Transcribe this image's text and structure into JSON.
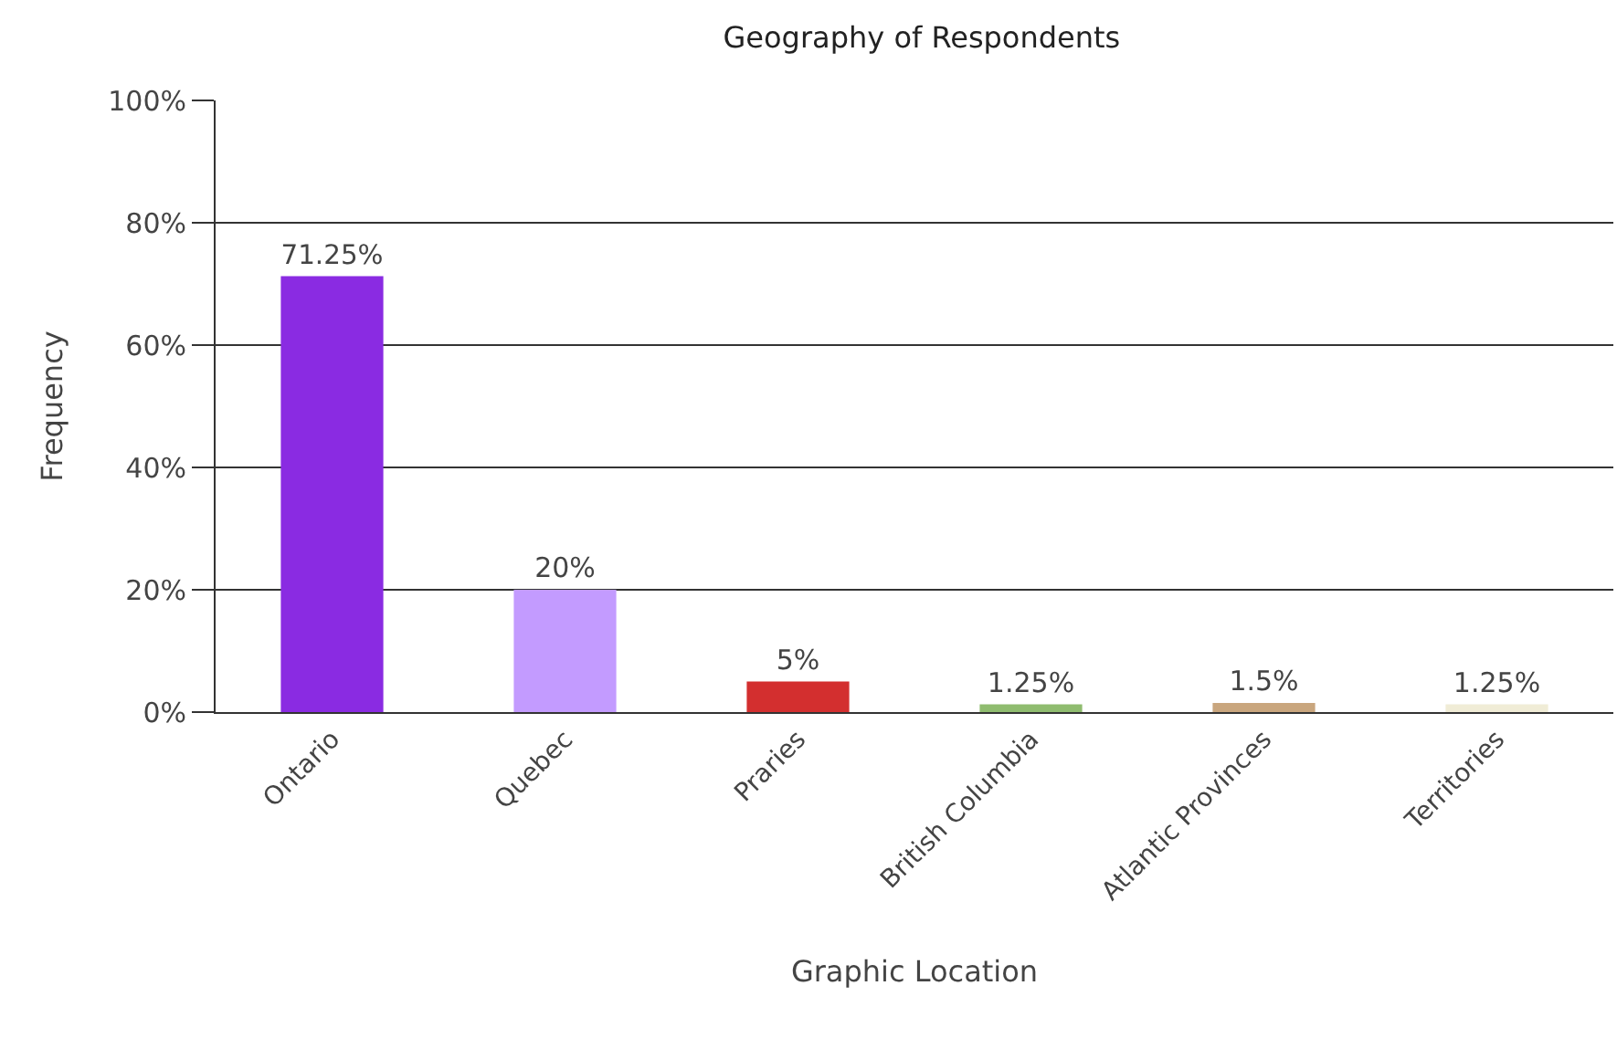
{
  "chart_data": {
    "type": "bar",
    "title": "Geography of Respondents",
    "xlabel": "Graphic Location",
    "ylabel": "Frequency",
    "categories": [
      "Ontario",
      "Quebec",
      "Praries",
      "British Columbia",
      "Atlantic Provinces",
      "Territories"
    ],
    "values": [
      71.25,
      20,
      5,
      1.25,
      1.5,
      1.25
    ],
    "value_labels": [
      "71.25%",
      "20%",
      "5%",
      "1.25%",
      "1.5%",
      "1.25%"
    ],
    "colors": [
      "#8a2be2",
      "#c39bff",
      "#d32f2f",
      "#8fbc6f",
      "#c9a67e",
      "#f0ecd6"
    ],
    "ylim": [
      0,
      100
    ],
    "yticks": [
      {
        "value": 0,
        "label": "0%"
      },
      {
        "value": 20,
        "label": "20%"
      },
      {
        "value": 40,
        "label": "40%"
      },
      {
        "value": 60,
        "label": "60%"
      },
      {
        "value": 80,
        "label": "80%"
      },
      {
        "value": 100,
        "label": "100%"
      }
    ],
    "grid": "y",
    "legend": false
  }
}
